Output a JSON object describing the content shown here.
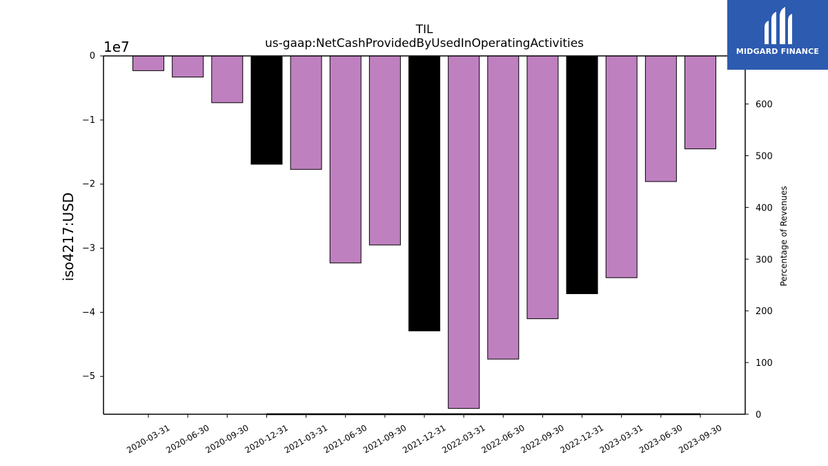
{
  "chart_data": {
    "type": "bar",
    "title": "TIL",
    "subtitle": "us-gaap:NetCashProvidedByUsedInOperatingActivities",
    "ylabel": "iso4217:USD",
    "y_offset_label": "1e7",
    "y2label": "Percentage of Revenues",
    "ylim": [
      -55900000,
      0
    ],
    "y_ticks": [
      0,
      -1,
      -2,
      -3,
      -4,
      -5
    ],
    "y2lim": [
      0,
      693
    ],
    "y2_ticks": [
      0,
      100,
      200,
      300,
      400,
      500,
      600
    ],
    "categories": [
      "2020-03-31",
      "2020-06-30",
      "2020-09-30",
      "2020-12-31",
      "2021-03-31",
      "2021-06-30",
      "2021-09-30",
      "2021-12-31",
      "2022-03-31",
      "2022-06-30",
      "2022-09-30",
      "2022-12-31",
      "2023-03-31",
      "2023-06-30",
      "2023-09-30"
    ],
    "values": [
      -2300000,
      -3300000,
      -7300000,
      -16900000,
      -17700000,
      -32300000,
      -29500000,
      -42900000,
      -55000000,
      -47300000,
      -41000000,
      -37100000,
      -34600000,
      -19600000,
      -14500000
    ],
    "bar_colors": [
      "#bf80bf",
      "#bf80bf",
      "#bf80bf",
      "#000000",
      "#bf80bf",
      "#bf80bf",
      "#bf80bf",
      "#000000",
      "#bf80bf",
      "#bf80bf",
      "#bf80bf",
      "#000000",
      "#bf80bf",
      "#bf80bf",
      "#bf80bf"
    ],
    "series": [
      {
        "values": [
          null,
          null,
          null,
          0,
          0,
          0,
          0,
          0,
          0,
          0,
          0,
          0,
          0,
          0,
          0
        ],
        "color": "#000000",
        "axis": "right"
      }
    ],
    "grid": false
  },
  "logo": {
    "text": "MIDGARD FINANCE",
    "background": "#2d5bb0"
  }
}
